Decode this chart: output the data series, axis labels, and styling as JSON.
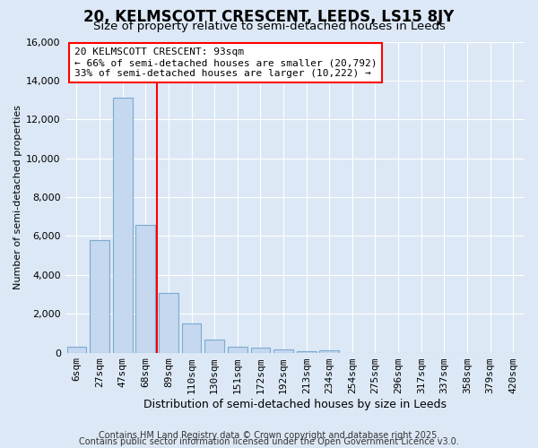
{
  "title": "20, KELMSCOTT CRESCENT, LEEDS, LS15 8JY",
  "subtitle": "Size of property relative to semi-detached houses in Leeds",
  "xlabel": "Distribution of semi-detached houses by size in Leeds",
  "ylabel": "Number of semi-detached properties",
  "categories": [
    "6sqm",
    "27sqm",
    "47sqm",
    "68sqm",
    "89sqm",
    "110sqm",
    "130sqm",
    "151sqm",
    "172sqm",
    "192sqm",
    "213sqm",
    "234sqm",
    "254sqm",
    "275sqm",
    "296sqm",
    "317sqm",
    "337sqm",
    "358sqm",
    "379sqm",
    "420sqm"
  ],
  "values": [
    310,
    5800,
    13100,
    6550,
    3080,
    1480,
    650,
    320,
    270,
    155,
    65,
    100,
    0,
    0,
    0,
    0,
    0,
    0,
    0,
    0
  ],
  "bar_color": "#c5d8f0",
  "bar_edge_color": "#7aaad0",
  "vline_color": "red",
  "vline_x": 3.5,
  "annotation_text_line1": "20 KELMSCOTT CRESCENT: 93sqm",
  "annotation_text_line2": "← 66% of semi-detached houses are smaller (20,792)",
  "annotation_text_line3": "33% of semi-detached houses are larger (10,222) →",
  "annotation_box_edge_color": "red",
  "annotation_box_facecolor": "white",
  "ylim": [
    0,
    16000
  ],
  "yticks": [
    0,
    2000,
    4000,
    6000,
    8000,
    10000,
    12000,
    14000,
    16000
  ],
  "footer_line1": "Contains HM Land Registry data © Crown copyright and database right 2025.",
  "footer_line2": "Contains public sector information licensed under the Open Government Licence v3.0.",
  "background_color": "#dce8f5",
  "plot_bg_color": "#dce8f5",
  "grid_color": "white",
  "title_fontsize": 12,
  "subtitle_fontsize": 9.5,
  "ylabel_fontsize": 8,
  "xlabel_fontsize": 9,
  "tick_fontsize": 8,
  "annot_fontsize": 8,
  "footer_fontsize": 7
}
